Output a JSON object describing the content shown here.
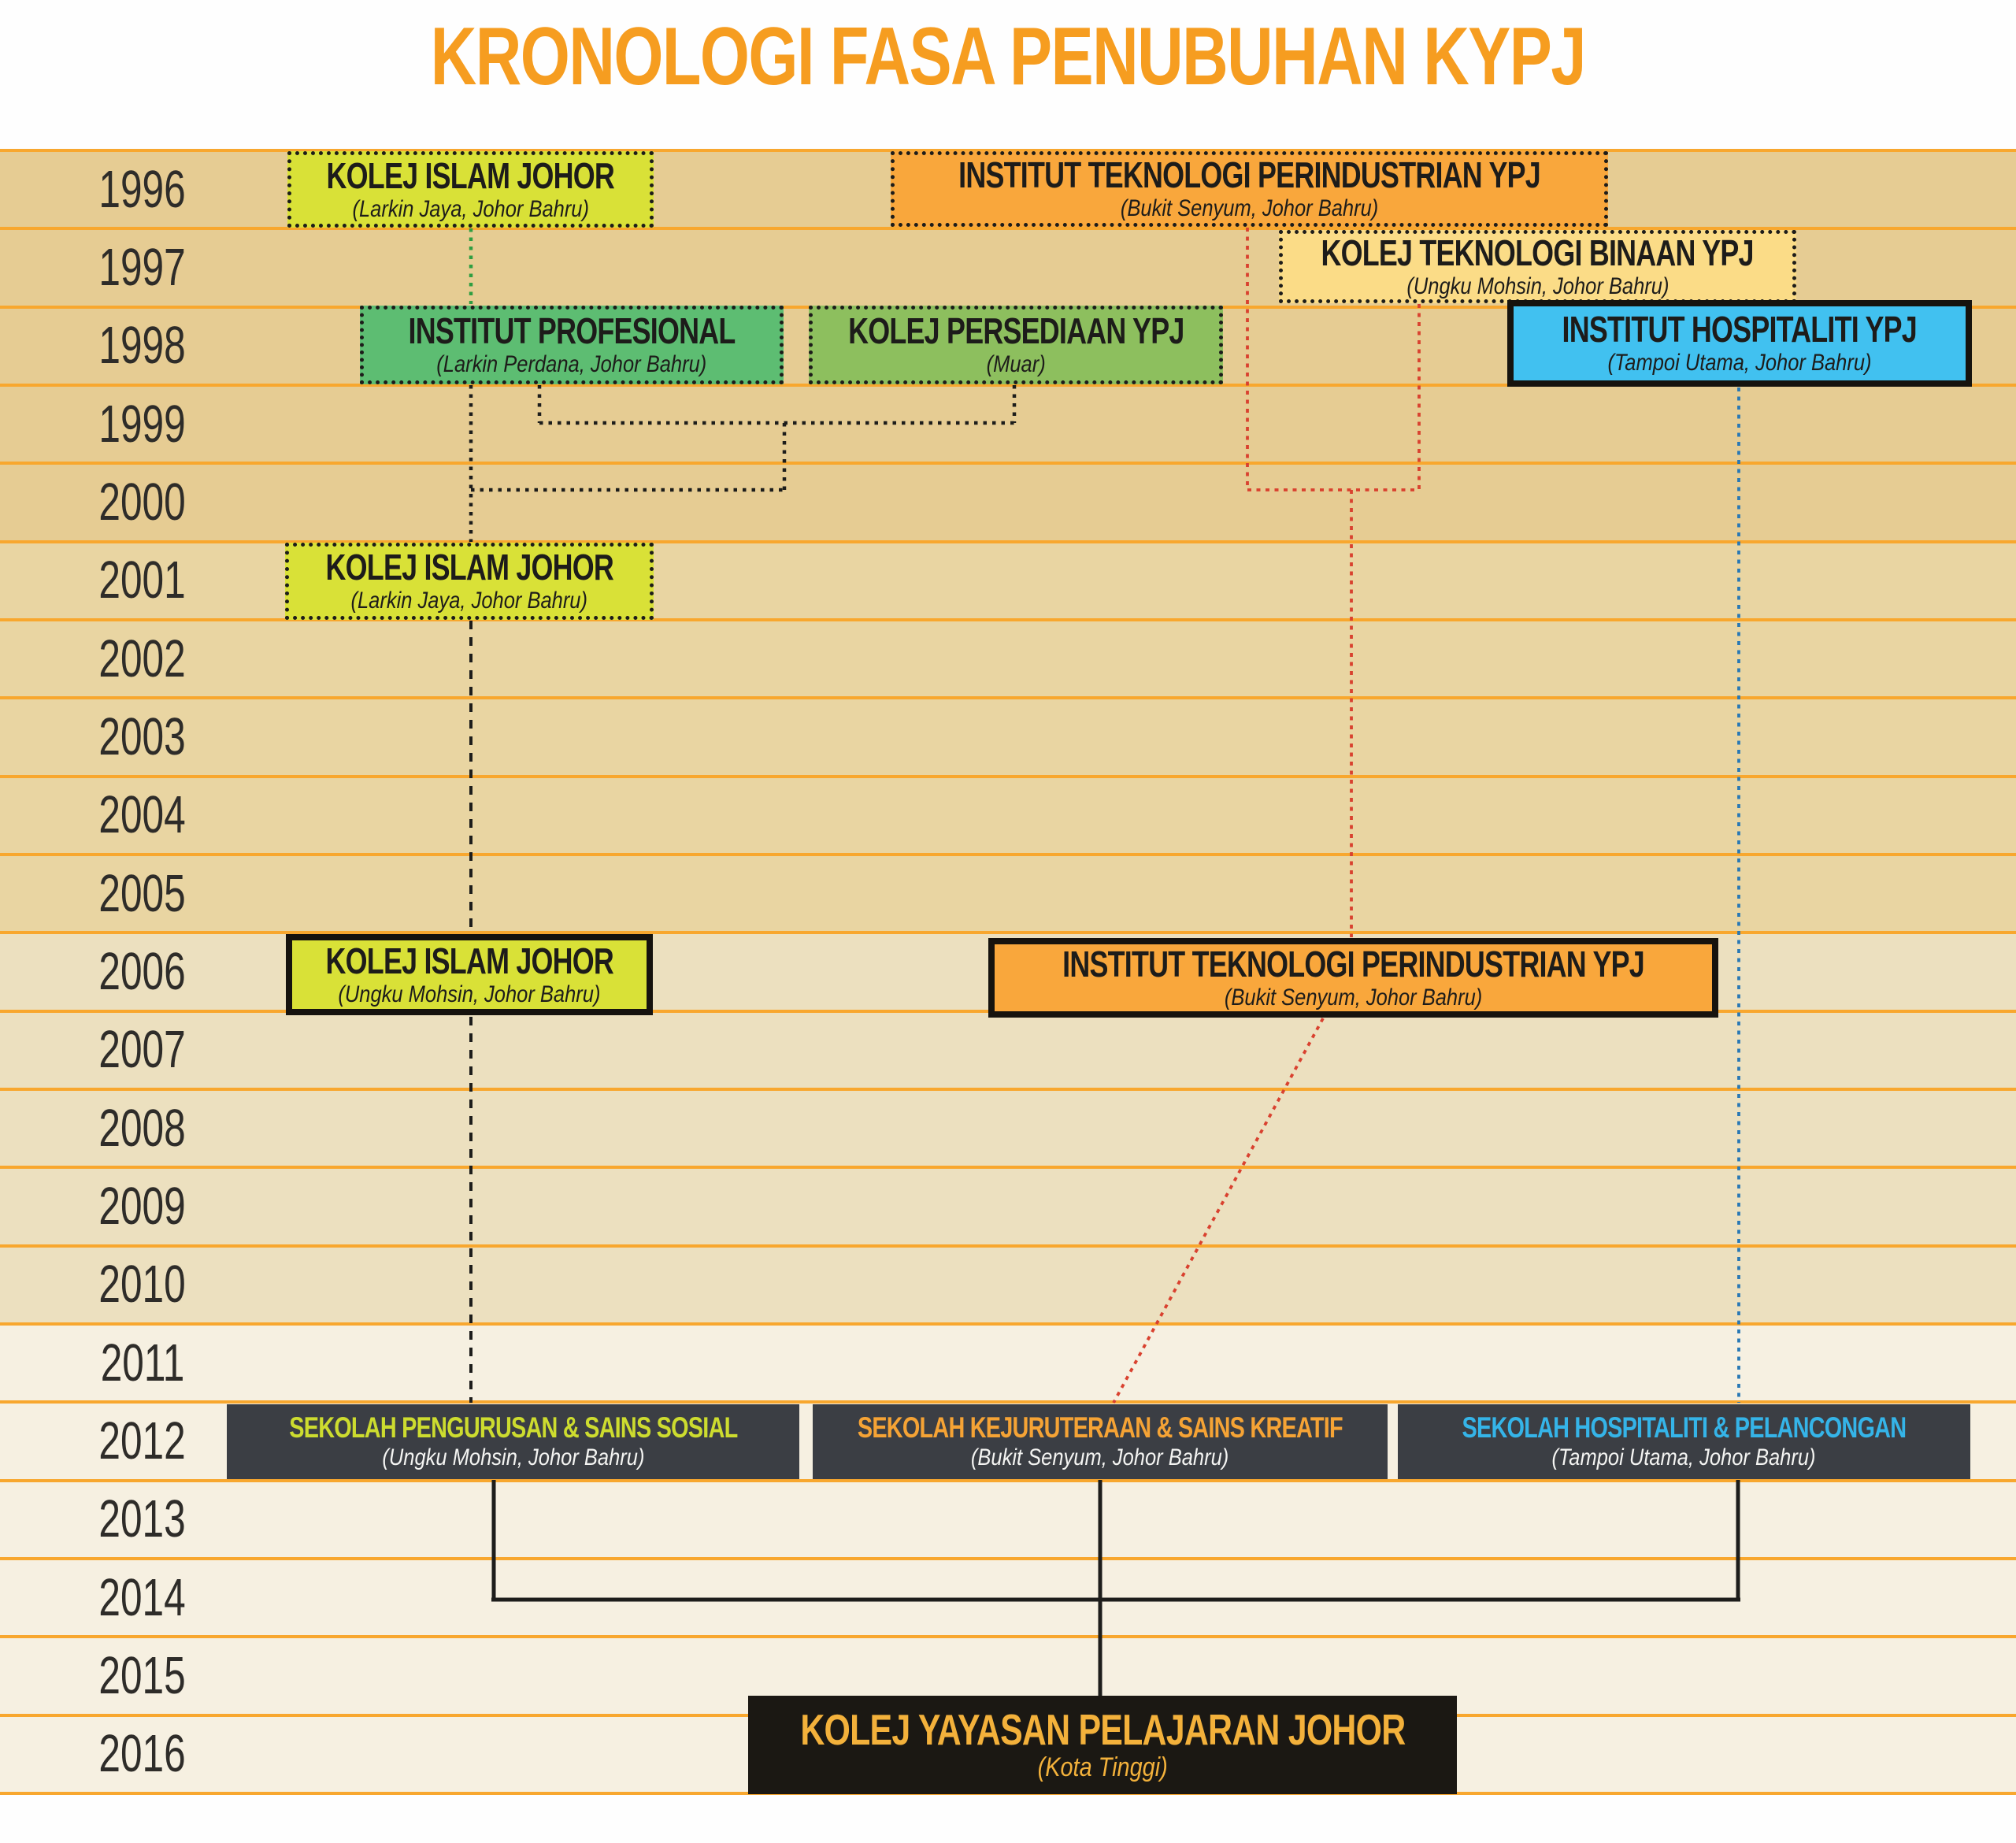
{
  "title": "KRONOLOGI FASA PENUBUHAN KYPJ",
  "years": [
    "1996",
    "1997",
    "1998",
    "1999",
    "2000",
    "2001",
    "2002",
    "2003",
    "2004",
    "2005",
    "2006",
    "2007",
    "2008",
    "2009",
    "2010",
    "2011",
    "2012",
    "2013",
    "2014",
    "2015",
    "2016"
  ],
  "palette": {
    "title_orange": "#f69d20",
    "row_line": "#f8a72e",
    "year_text": "#2e2c29",
    "band_1996_2000": "#e6cc93",
    "band_2001_2005": "#e9d5a2",
    "band_2006_2010": "#ece0bf",
    "band_2011_2016": "#f6f0e1",
    "below_band": "#fefefe",
    "box_text_dark": "#1d1c1a",
    "kij_fill": "#d9e137",
    "itp_fill": "#f9a73c",
    "ktb_fill": "#fbdc87",
    "ip_fill": "#5dbd72",
    "kp_fill": "#8dbf5e",
    "ih_fill": "#41c1f0",
    "dark_box_fill": "#3b3e44",
    "black_box_fill": "#1b1813",
    "dark_box_subtitle": "#f4f4f2",
    "spss_title": "#cddc2f",
    "sksk_title": "#f5a335",
    "shp_title": "#35b4e8",
    "kypj_text": "#f3b13b",
    "line_green": "#2f9e41",
    "line_black": "#1d1d1b",
    "line_red": "#d9412f",
    "line_blue": "#2878b5"
  },
  "boxes": [
    {
      "id": "kij-1996",
      "year": "1996",
      "name": "KOLEJ ISLAM JOHOR",
      "location": "(Larkin Jaya, Johor Bahru)"
    },
    {
      "id": "itp-1996",
      "year": "1996",
      "name": "INSTITUT TEKNOLOGI PERINDUSTRIAN YPJ",
      "location": "(Bukit Senyum, Johor Bahru)"
    },
    {
      "id": "ktb-1997",
      "year": "1997",
      "name": "KOLEJ TEKNOLOGI BINAAN YPJ",
      "location": "(Ungku Mohsin, Johor Bahru)"
    },
    {
      "id": "ip-1998",
      "year": "1998",
      "name": "INSTITUT PROFESIONAL",
      "location": "(Larkin Perdana, Johor Bahru)"
    },
    {
      "id": "kp-1998",
      "year": "1998",
      "name": "KOLEJ PERSEDIAAN YPJ",
      "location": "(Muar)"
    },
    {
      "id": "ih-1998",
      "year": "1998",
      "name": "INSTITUT HOSPITALITI YPJ",
      "location": "(Tampoi Utama, Johor Bahru)"
    },
    {
      "id": "kij-2001",
      "year": "2001",
      "name": "KOLEJ ISLAM JOHOR",
      "location": "(Larkin Jaya, Johor Bahru)"
    },
    {
      "id": "kij-2006",
      "year": "2006",
      "name": "KOLEJ ISLAM JOHOR",
      "location": "(Ungku Mohsin, Johor Bahru)"
    },
    {
      "id": "itp-2006",
      "year": "2006",
      "name": "INSTITUT TEKNOLOGI PERINDUSTRIAN YPJ",
      "location": "(Bukit Senyum, Johor Bahru)"
    },
    {
      "id": "spss-2012",
      "year": "2012",
      "name": "SEKOLAH PENGURUSAN & SAINS SOSIAL",
      "location": "(Ungku Mohsin, Johor Bahru)"
    },
    {
      "id": "sksk-2012",
      "year": "2012",
      "name": "SEKOLAH KEJURUTERAAN & SAINS KREATIF",
      "location": "(Bukit Senyum, Johor Bahru)"
    },
    {
      "id": "shp-2012",
      "year": "2012",
      "name": "SEKOLAH HOSPITALITI & PELANCONGAN",
      "location": "(Tampoi Utama, Johor Bahru)"
    },
    {
      "id": "kypj-2016",
      "year": "2016",
      "name": "KOLEJ YAYASAN PELAJARAN JOHOR",
      "location": "(Kota Tinggi)"
    }
  ]
}
